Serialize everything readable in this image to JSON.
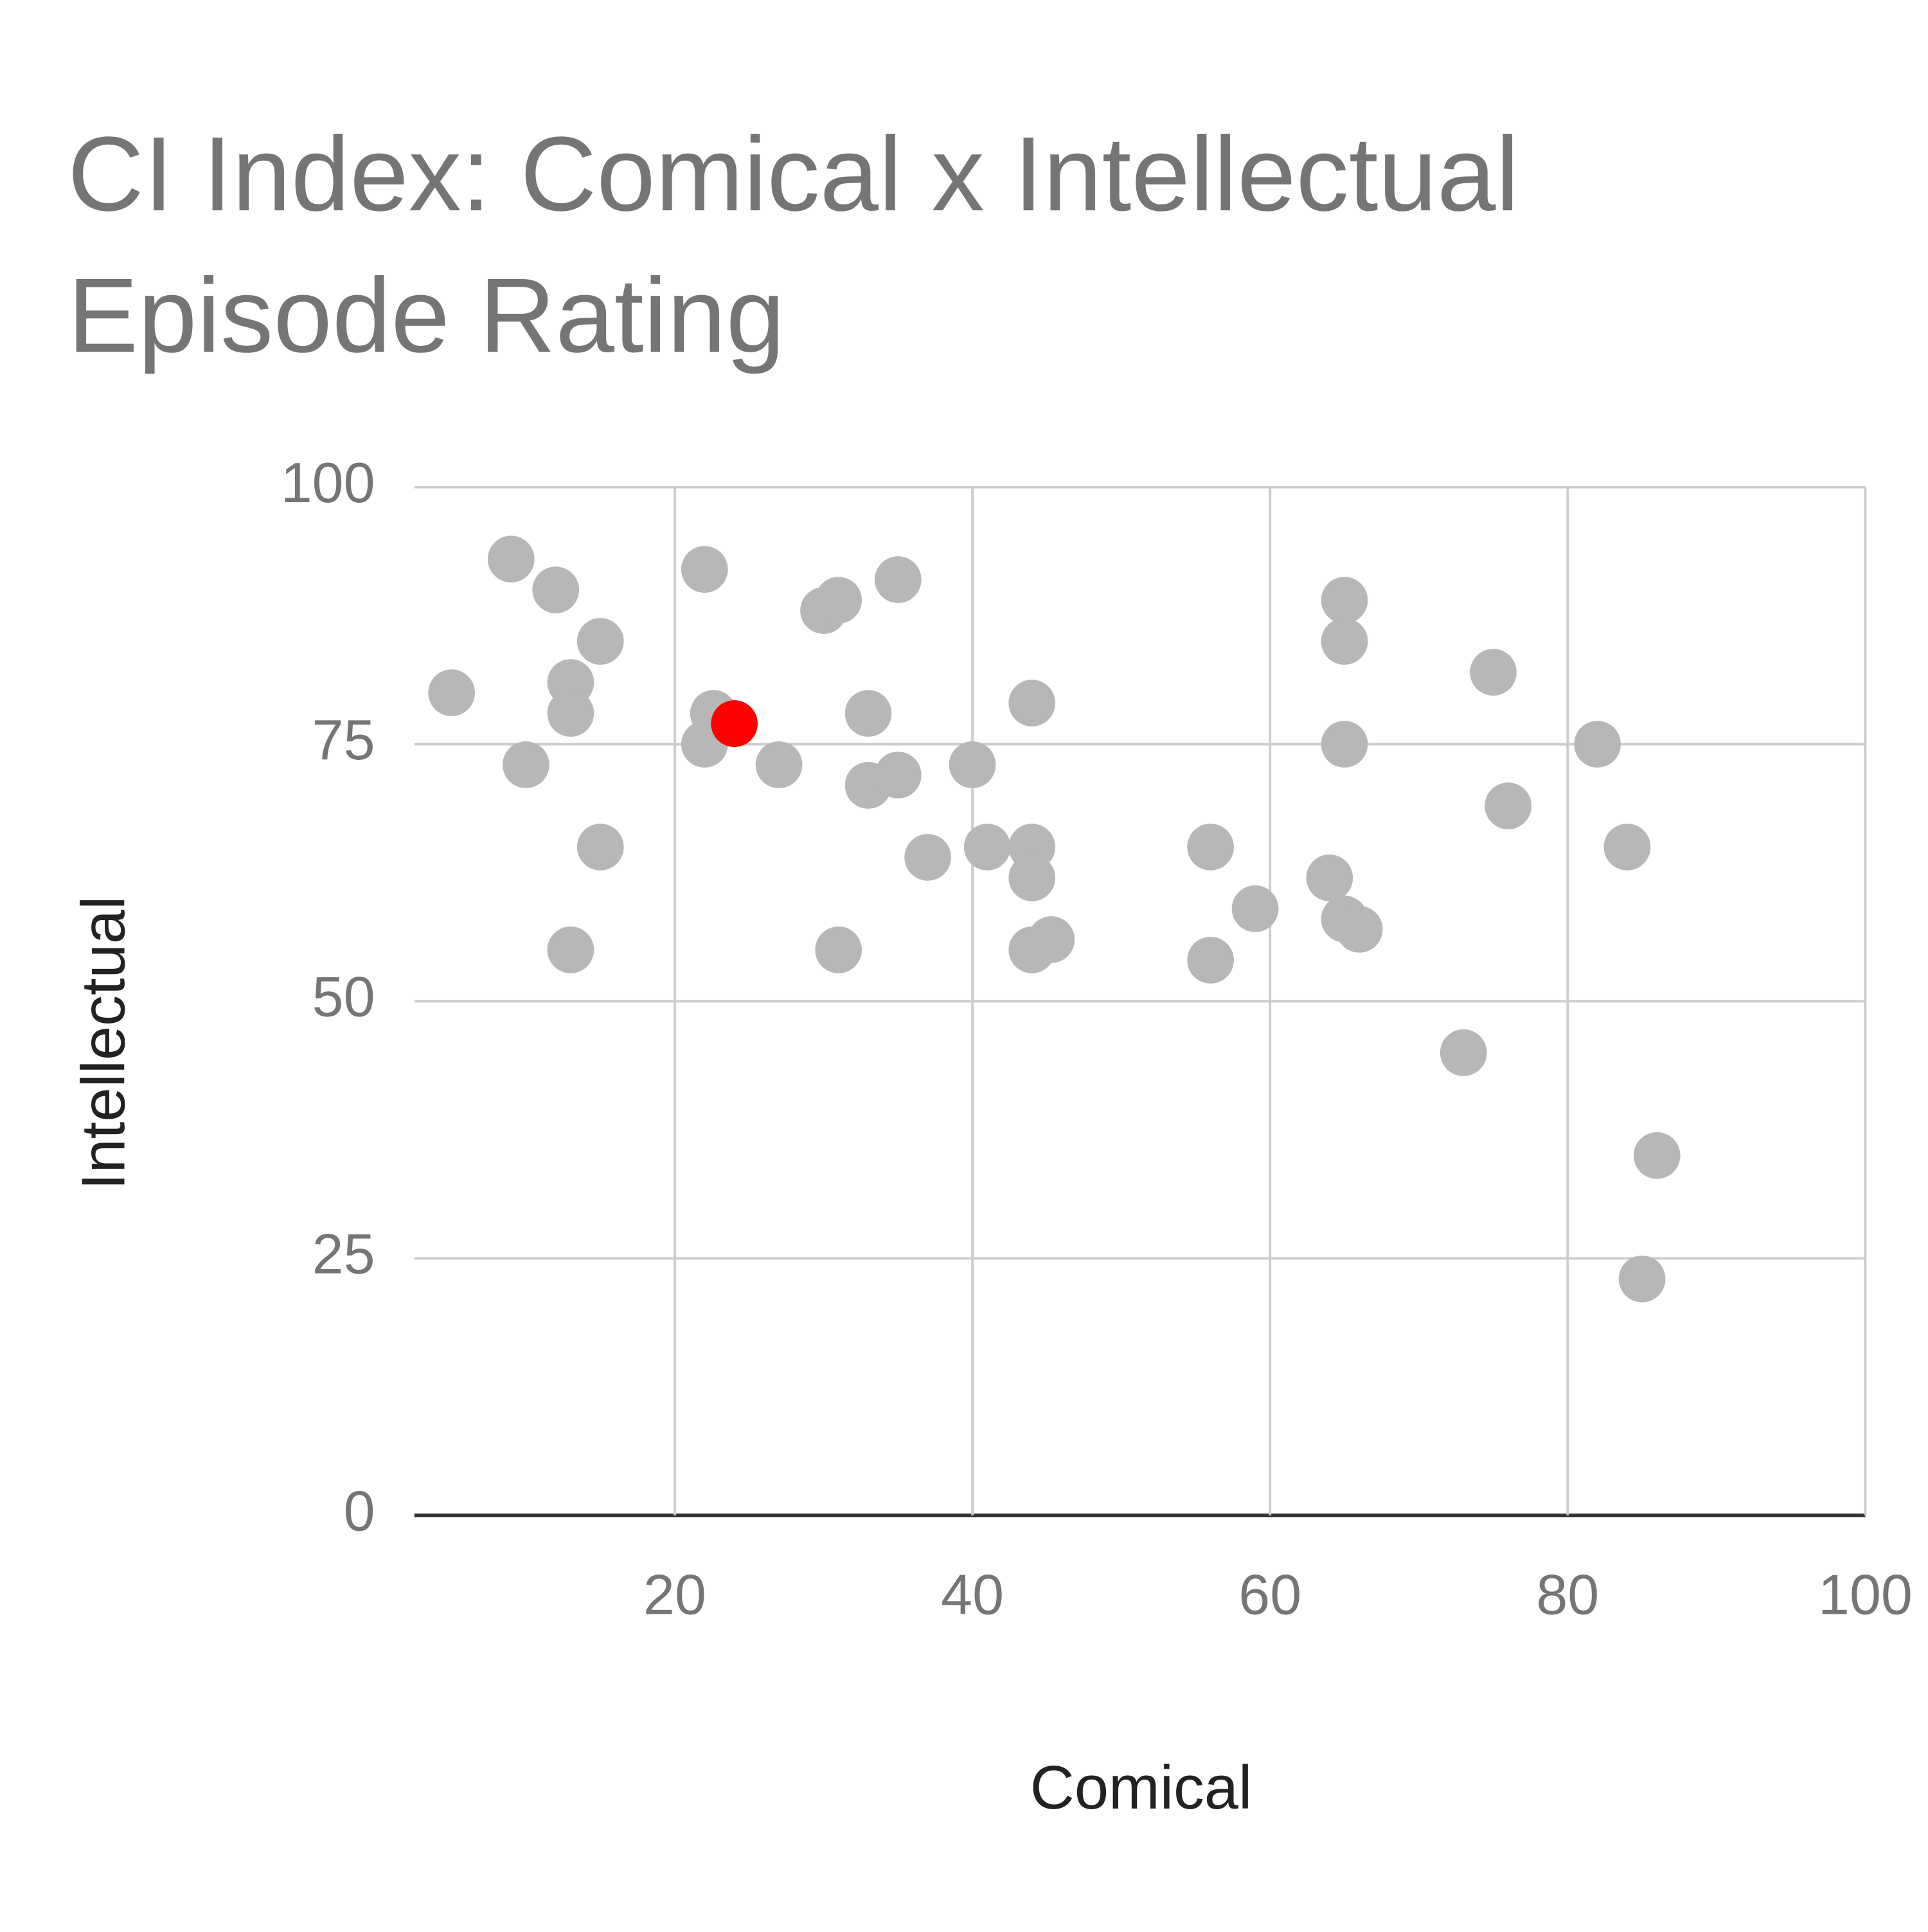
{
  "chart_data": {
    "type": "scatter",
    "title": "CI Index: Comical x Intellectual Episode Rating",
    "x_label": "Comical",
    "y_label": "Intellectual",
    "xlim": [
      2.5,
      100
    ],
    "xticks": [
      20,
      40,
      60,
      80,
      100
    ],
    "ylim": [
      0,
      100
    ],
    "yticks": [
      0,
      25,
      50,
      75,
      100
    ],
    "grid": true,
    "series": [
      {
        "color": "#b7b7b7",
        "x": [
          9,
          12,
          15,
          5,
          13,
          13,
          10,
          15,
          13,
          22,
          22.6,
          22,
          27,
          30,
          31,
          35,
          33,
          33,
          35,
          37,
          31,
          40,
          41,
          44,
          44,
          44,
          44,
          45.3,
          56,
          56,
          59,
          64,
          65,
          65,
          65,
          65,
          66,
          73,
          75,
          76,
          82,
          84,
          86,
          85
        ],
        "values": [
          93,
          90,
          85,
          80,
          81,
          78,
          73,
          65,
          55,
          92,
          78,
          75,
          73,
          88,
          89,
          91,
          78,
          71,
          72,
          64,
          55,
          73,
          65,
          79,
          65,
          62,
          55,
          56,
          65,
          54,
          59,
          62,
          89,
          85,
          75,
          58,
          57,
          45,
          82,
          69,
          75,
          65,
          35,
          23
        ]
      },
      {
        "color": "#ff0000",
        "x": [
          24
        ],
        "values": [
          77
        ]
      }
    ]
  }
}
